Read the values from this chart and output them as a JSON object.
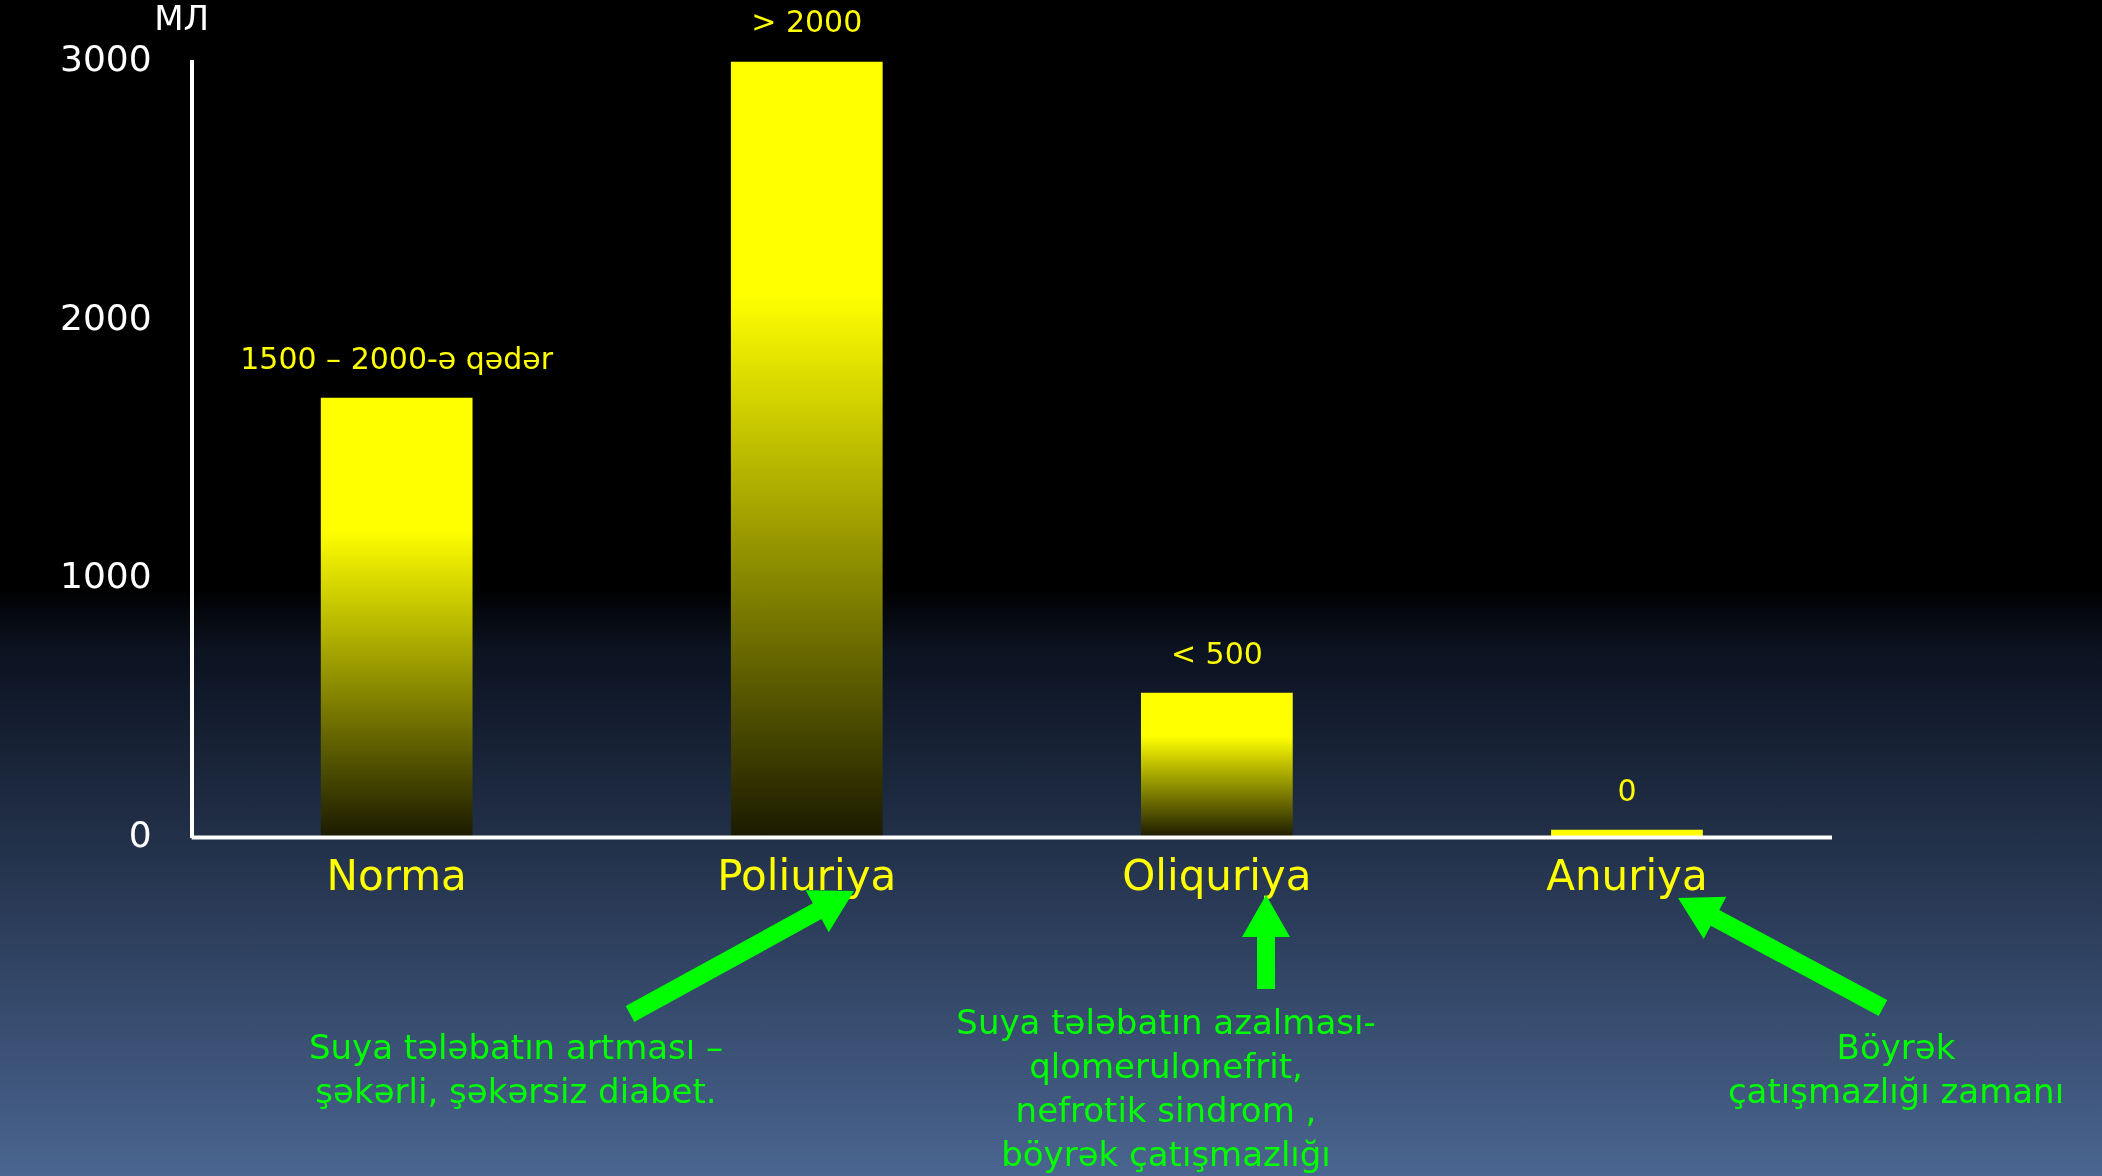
{
  "chart_data": {
    "type": "bar",
    "ylabel": "МЛ",
    "categories": [
      "Norma",
      "Poliuriya",
      "Oliquriya",
      "Anuriya"
    ],
    "values": [
      1700,
      3000,
      560,
      30
    ],
    "color": "#ffff00",
    "ylim": [
      0,
      3000
    ],
    "yticks": [
      0,
      1000,
      2000,
      3000
    ],
    "grid": false,
    "legend": false,
    "annotations": [
      {
        "text": "1500 – 2000-ə qədər",
        "x": "Norma",
        "y": 1700
      },
      {
        "text": "> 2000",
        "x": "Poliuriya",
        "y": 3000
      },
      {
        "text": "< 500",
        "x": "Oliquriya",
        "y": 560
      },
      {
        "text": "0",
        "x": "Anuriya",
        "y": 30
      },
      "Suya tələbatın artması –\nşəkərli, şəkərsiz diabet.",
      "Suya tələbatın azalması-\nqlomerulonefrit,\nnefrotik sindrom ,\nböyrək çatışmazlığı",
      "Böyrək\nçatışmazlığı zamanı"
    ]
  }
}
